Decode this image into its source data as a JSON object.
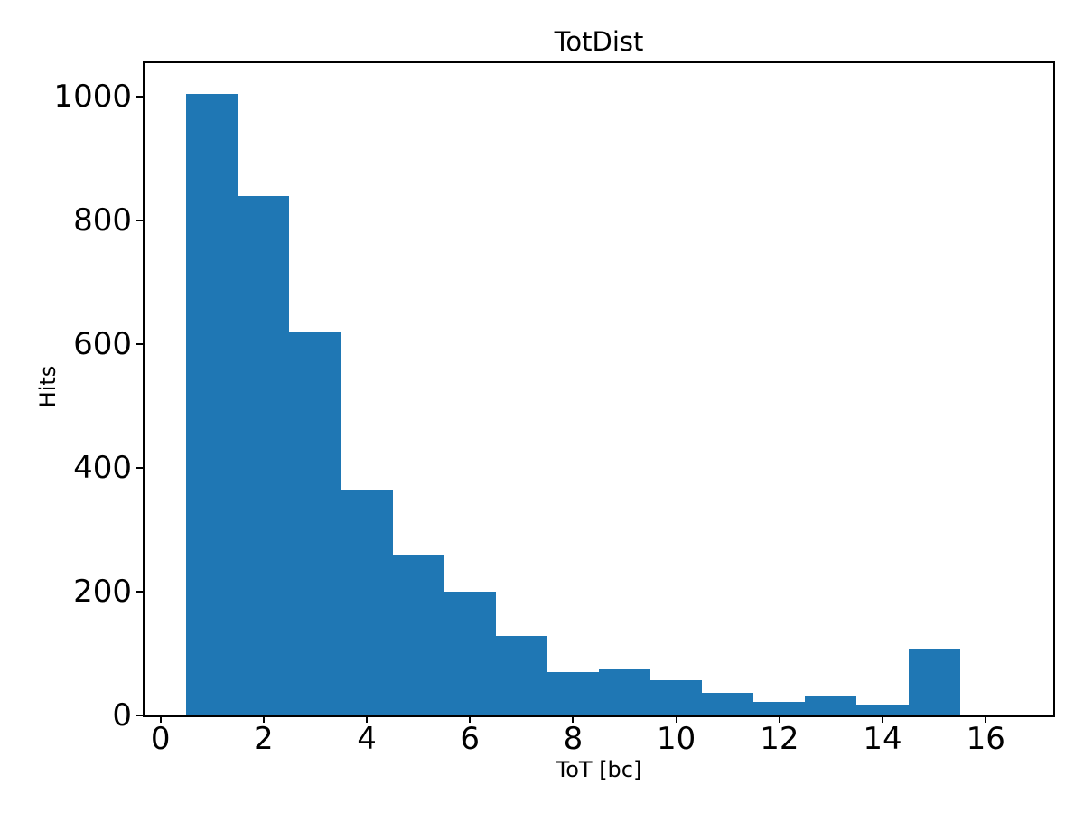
{
  "chart_data": {
    "type": "bar",
    "subtype": "histogram",
    "title": "TotDist",
    "xlabel": "ToT [bc]",
    "ylabel": "Hits",
    "bin_start": 0.5,
    "bin_width": 1,
    "bin_edges": [
      0.5,
      1.5,
      2.5,
      3.5,
      4.5,
      5.5,
      6.5,
      7.5,
      8.5,
      9.5,
      10.5,
      11.5,
      12.5,
      13.5,
      14.5,
      15.5,
      16.5
    ],
    "counts": [
      1005,
      840,
      620,
      365,
      260,
      200,
      128,
      70,
      74,
      57,
      36,
      22,
      30,
      17,
      106,
      0
    ],
    "xlim": [
      -0.31,
      17.31
    ],
    "ylim": [
      0,
      1054
    ],
    "xticks": [
      0,
      2,
      4,
      6,
      8,
      10,
      12,
      14,
      16
    ],
    "yticks": [
      0,
      200,
      400,
      600,
      800,
      1000
    ],
    "bar_color": "#1f77b4",
    "spine_color": "#000000",
    "background_color": "#ffffff",
    "grid": false,
    "legend": null
  }
}
